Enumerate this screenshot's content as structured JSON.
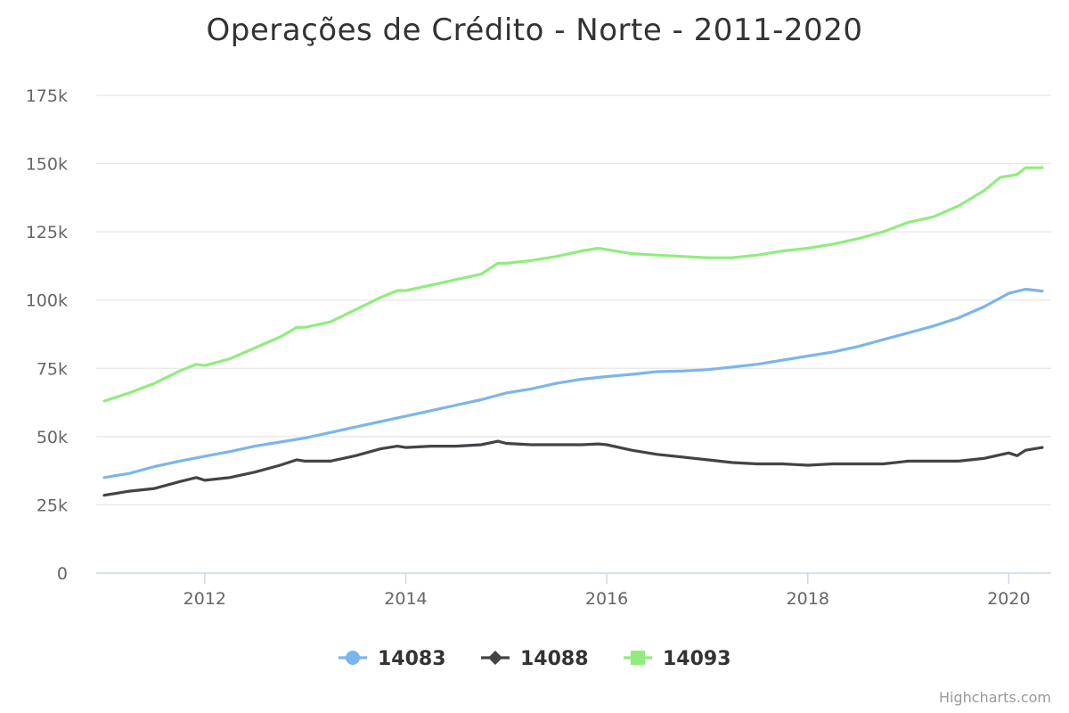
{
  "credits": "Highcharts.com",
  "chart_data": {
    "type": "line",
    "title": "Operações de Crédito - Norte - 2011-2020",
    "xlabel": "",
    "ylabel": "",
    "x_range": [
      "2011-01",
      "2020-05"
    ],
    "ylim": [
      0,
      175000
    ],
    "y_ticks": [
      {
        "value": 0,
        "label": "0"
      },
      {
        "value": 25000,
        "label": "25k"
      },
      {
        "value": 50000,
        "label": "50k"
      },
      {
        "value": 75000,
        "label": "75k"
      },
      {
        "value": 100000,
        "label": "100k"
      },
      {
        "value": 125000,
        "label": "125k"
      },
      {
        "value": 150000,
        "label": "150k"
      },
      {
        "value": 175000,
        "label": "175k"
      }
    ],
    "x_ticks": [
      {
        "value": "2012-01",
        "label": "2012"
      },
      {
        "value": "2014-01",
        "label": "2014"
      },
      {
        "value": "2016-01",
        "label": "2016"
      },
      {
        "value": "2018-01",
        "label": "2018"
      },
      {
        "value": "2020-01",
        "label": "2020"
      }
    ],
    "grid": "horizontal",
    "legend": "bottom-center",
    "series": [
      {
        "name": "14083",
        "color": "#7cb5ec",
        "marker": "circle",
        "points": [
          [
            "2011-01",
            35000
          ],
          [
            "2011-04",
            36500
          ],
          [
            "2011-07",
            39000
          ],
          [
            "2011-10",
            41000
          ],
          [
            "2012-01",
            42800
          ],
          [
            "2012-04",
            44500
          ],
          [
            "2012-07",
            46500
          ],
          [
            "2012-10",
            48000
          ],
          [
            "2013-01",
            49500
          ],
          [
            "2013-04",
            51500
          ],
          [
            "2013-07",
            53500
          ],
          [
            "2013-10",
            55500
          ],
          [
            "2014-01",
            57500
          ],
          [
            "2014-04",
            59500
          ],
          [
            "2014-07",
            61500
          ],
          [
            "2014-10",
            63500
          ],
          [
            "2015-01",
            66000
          ],
          [
            "2015-04",
            67500
          ],
          [
            "2015-07",
            69500
          ],
          [
            "2015-10",
            71000
          ],
          [
            "2016-01",
            72000
          ],
          [
            "2016-04",
            72800
          ],
          [
            "2016-07",
            73800
          ],
          [
            "2016-10",
            74000
          ],
          [
            "2017-01",
            74500
          ],
          [
            "2017-04",
            75500
          ],
          [
            "2017-07",
            76500
          ],
          [
            "2017-10",
            78000
          ],
          [
            "2018-01",
            79500
          ],
          [
            "2018-04",
            81000
          ],
          [
            "2018-07",
            83000
          ],
          [
            "2018-10",
            85500
          ],
          [
            "2019-01",
            88000
          ],
          [
            "2019-04",
            90500
          ],
          [
            "2019-07",
            93500
          ],
          [
            "2019-10",
            97500
          ],
          [
            "2020-01",
            102500
          ],
          [
            "2020-03",
            104000
          ],
          [
            "2020-05",
            103300
          ]
        ]
      },
      {
        "name": "14088",
        "color": "#434348",
        "marker": "diamond",
        "points": [
          [
            "2011-01",
            28500
          ],
          [
            "2011-04",
            30000
          ],
          [
            "2011-07",
            31000
          ],
          [
            "2011-10",
            33500
          ],
          [
            "2011-12",
            35000
          ],
          [
            "2012-01",
            34000
          ],
          [
            "2012-04",
            35000
          ],
          [
            "2012-07",
            37000
          ],
          [
            "2012-10",
            39500
          ],
          [
            "2012-12",
            41500
          ],
          [
            "2013-01",
            41000
          ],
          [
            "2013-04",
            41000
          ],
          [
            "2013-07",
            43000
          ],
          [
            "2013-10",
            45500
          ],
          [
            "2013-12",
            46500
          ],
          [
            "2014-01",
            46000
          ],
          [
            "2014-04",
            46500
          ],
          [
            "2014-07",
            46500
          ],
          [
            "2014-10",
            47000
          ],
          [
            "2014-12",
            48300
          ],
          [
            "2015-01",
            47500
          ],
          [
            "2015-04",
            47000
          ],
          [
            "2015-07",
            47000
          ],
          [
            "2015-10",
            47000
          ],
          [
            "2015-12",
            47300
          ],
          [
            "2016-01",
            47000
          ],
          [
            "2016-04",
            45000
          ],
          [
            "2016-07",
            43500
          ],
          [
            "2016-10",
            42500
          ],
          [
            "2017-01",
            41500
          ],
          [
            "2017-04",
            40500
          ],
          [
            "2017-07",
            40000
          ],
          [
            "2017-10",
            40000
          ],
          [
            "2018-01",
            39500
          ],
          [
            "2018-04",
            40000
          ],
          [
            "2018-07",
            40000
          ],
          [
            "2018-10",
            40000
          ],
          [
            "2019-01",
            41000
          ],
          [
            "2019-04",
            41000
          ],
          [
            "2019-07",
            41000
          ],
          [
            "2019-10",
            42000
          ],
          [
            "2020-01",
            44000
          ],
          [
            "2020-02",
            43000
          ],
          [
            "2020-03",
            45000
          ],
          [
            "2020-05",
            46000
          ]
        ]
      },
      {
        "name": "14093",
        "color": "#90ed7d",
        "marker": "square",
        "points": [
          [
            "2011-01",
            63000
          ],
          [
            "2011-04",
            66000
          ],
          [
            "2011-07",
            69500
          ],
          [
            "2011-10",
            74000
          ],
          [
            "2011-12",
            76500
          ],
          [
            "2012-01",
            76000
          ],
          [
            "2012-04",
            78500
          ],
          [
            "2012-07",
            82500
          ],
          [
            "2012-10",
            86500
          ],
          [
            "2012-12",
            90000
          ],
          [
            "2013-01",
            90000
          ],
          [
            "2013-04",
            92000
          ],
          [
            "2013-07",
            96500
          ],
          [
            "2013-10",
            101000
          ],
          [
            "2013-12",
            103500
          ],
          [
            "2014-01",
            103500
          ],
          [
            "2014-04",
            105500
          ],
          [
            "2014-07",
            107500
          ],
          [
            "2014-10",
            109500
          ],
          [
            "2014-12",
            113500
          ],
          [
            "2015-01",
            113500
          ],
          [
            "2015-04",
            114500
          ],
          [
            "2015-07",
            116000
          ],
          [
            "2015-10",
            118000
          ],
          [
            "2015-12",
            119000
          ],
          [
            "2016-01",
            118500
          ],
          [
            "2016-04",
            117000
          ],
          [
            "2016-07",
            116500
          ],
          [
            "2016-10",
            116000
          ],
          [
            "2017-01",
            115500
          ],
          [
            "2017-04",
            115500
          ],
          [
            "2017-07",
            116500
          ],
          [
            "2017-10",
            118000
          ],
          [
            "2018-01",
            119000
          ],
          [
            "2018-04",
            120500
          ],
          [
            "2018-07",
            122500
          ],
          [
            "2018-10",
            125000
          ],
          [
            "2019-01",
            128500
          ],
          [
            "2019-04",
            130500
          ],
          [
            "2019-07",
            134500
          ],
          [
            "2019-10",
            140000
          ],
          [
            "2019-12",
            145000
          ],
          [
            "2020-02",
            146000
          ],
          [
            "2020-03",
            148500
          ],
          [
            "2020-05",
            148500
          ]
        ]
      }
    ]
  }
}
